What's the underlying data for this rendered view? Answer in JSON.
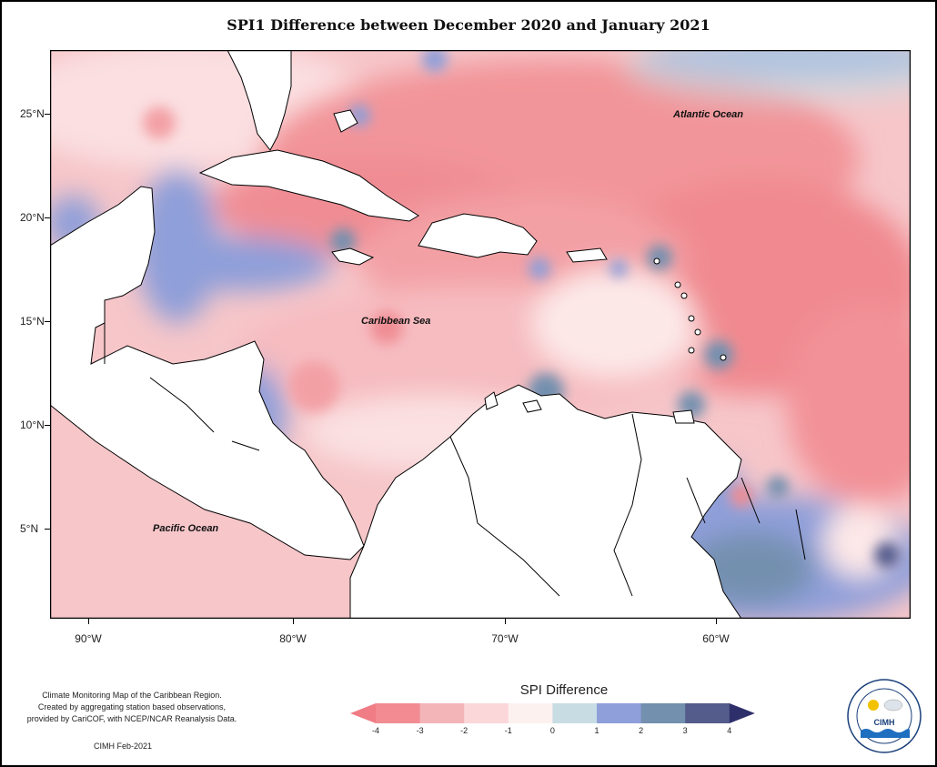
{
  "title": "SPI1 Difference between December 2020 and January 2021",
  "map": {
    "lon_labels": [
      "90°W",
      "80°W",
      "70°W",
      "60°W"
    ],
    "lat_labels": [
      "25°N",
      "20°N",
      "15°N",
      "10°N",
      "5°N"
    ],
    "ocean_labels": {
      "atlantic": "Atlantic Ocean",
      "caribbean": "Caribbean Sea",
      "pacific": "Pacific Ocean"
    }
  },
  "legend": {
    "title": "SPI Difference",
    "ticks": [
      "-4",
      "-3",
      "-2",
      "-1",
      "0",
      "1",
      "2",
      "3",
      "4"
    ],
    "colors": [
      "#f28b92",
      "#f3b5b8",
      "#fbd7da",
      "#fdf1f0",
      "#c8dde3",
      "#8f9fd9",
      "#7390af",
      "#545c8c"
    ],
    "arrow_low_color": "#f07c86",
    "arrow_high_color": "#2e2f6a"
  },
  "info": {
    "line1": "Climate Monitoring Map of the Caribbean Region.",
    "line2": "Created by aggregating station based observations,",
    "line3": "provided by CariCOF, with NCEP/NCAR Reanalysis Data.",
    "credit": "CIMH Feb-2021"
  },
  "logo": {
    "text": "CIMH",
    "ring_text": "Caribbean Institute for Meteorology and Hydrology"
  }
}
